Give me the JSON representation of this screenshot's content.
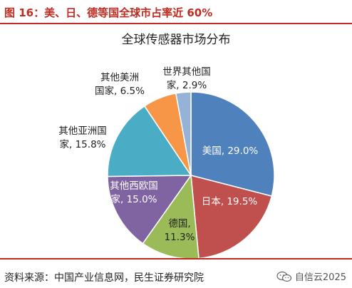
{
  "header": {
    "title": "图 16：美、日、德等国全球市占率近 60%"
  },
  "chart_data": {
    "type": "pie",
    "title": "全球传感器市场分布",
    "start_angle_deg": 0,
    "direction": "clockwise",
    "slices": [
      {
        "name": "美国",
        "value": 29.0,
        "label_lines": [
          "美国, 29.0%"
        ],
        "label_color": "#ffffff",
        "color": "#4f81bd"
      },
      {
        "name": "日本",
        "value": 19.5,
        "label_lines": [
          "日本, 19.5%"
        ],
        "label_color": "#ffffff",
        "color": "#c0504d"
      },
      {
        "name": "德国",
        "value": 11.3,
        "label_lines": [
          "德国,",
          "11.3%"
        ],
        "label_color": "#222222",
        "color": "#9bbb59"
      },
      {
        "name": "其他西欧国家",
        "value": 15.0,
        "label_lines": [
          "其他西欧国",
          "家, 15.0%"
        ],
        "label_color": "#ffffff",
        "color": "#8064a2"
      },
      {
        "name": "其他亚洲国家",
        "value": 15.8,
        "label_lines": [
          "其他亚洲国",
          "家, 15.8%"
        ],
        "label_color": "#222222",
        "color": "#4bacc6"
      },
      {
        "name": "其他美洲国家",
        "value": 6.5,
        "label_lines": [
          "其他美洲",
          "国家, 6.5%"
        ],
        "label_color": "#222222",
        "color": "#f79646"
      },
      {
        "name": "世界其他国家",
        "value": 2.9,
        "label_lines": [
          "世界其他国",
          "家, 2.9%"
        ],
        "label_color": "#222222",
        "color": "#95b3d7"
      }
    ]
  },
  "footer": {
    "source": "资料来源：中国产业信息网，民生证券研究院",
    "watermark": "自信云2025"
  }
}
